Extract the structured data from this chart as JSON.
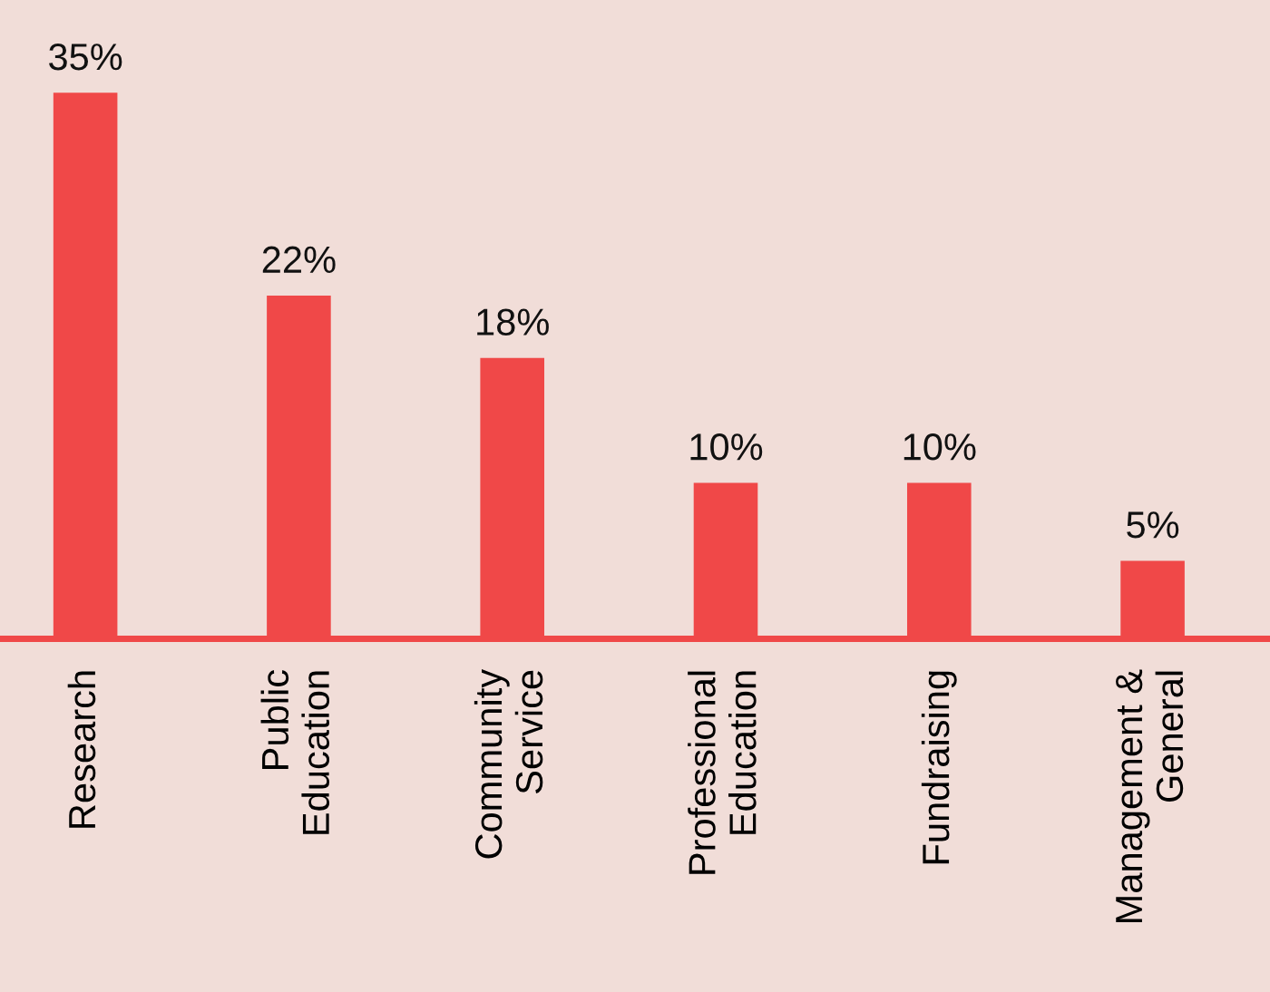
{
  "chart_data": {
    "type": "bar",
    "categories": [
      "Research",
      "Public\nEducation",
      "Community\nService",
      "Professional\nEducation",
      "Fundraising",
      "Management &\nGeneral"
    ],
    "values": [
      35,
      22,
      18,
      10,
      10,
      5
    ],
    "value_labels": [
      "35%",
      "22%",
      "18%",
      "10%",
      "10%",
      "5%"
    ],
    "color": "#f04848",
    "grid": false,
    "legend": false
  }
}
